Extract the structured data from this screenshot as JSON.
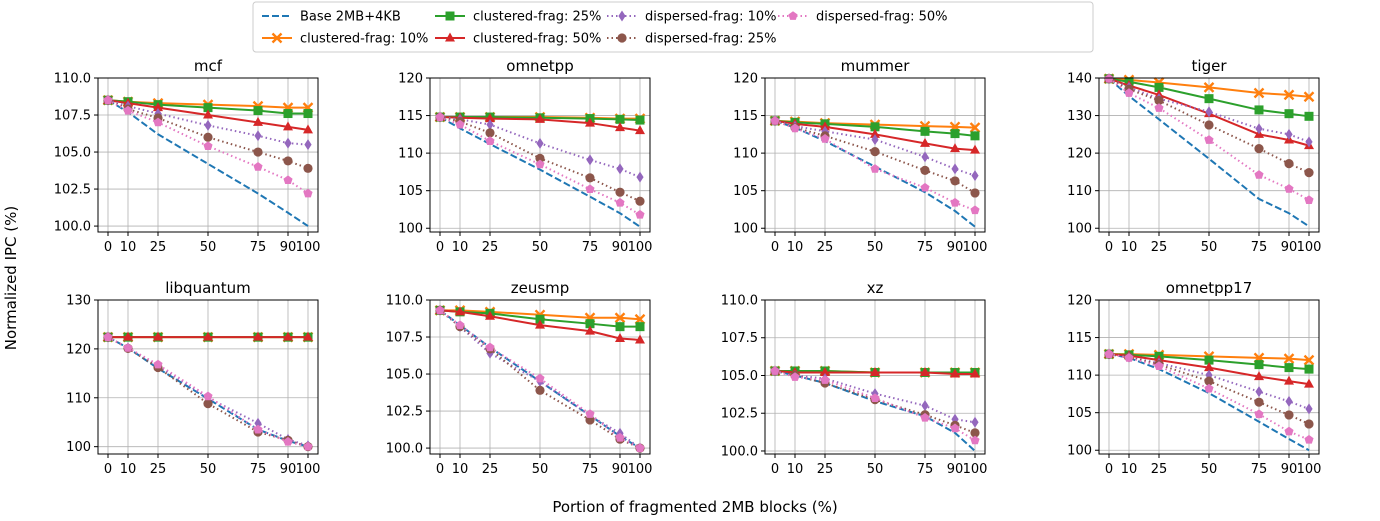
{
  "figure": {
    "xlabel": "Portion of fragmented 2MB blocks (%)",
    "ylabel": "Normalized IPC (%)"
  },
  "legend": {
    "placement": "top-center",
    "entries": [
      {
        "name": "Base 2MB+4KB",
        "color": "#1f77b4",
        "dash": "dashed",
        "marker": "none"
      },
      {
        "name": "clustered-frag: 10%",
        "color": "#ff7f0e",
        "dash": "solid",
        "marker": "x"
      },
      {
        "name": "clustered-frag: 25%",
        "color": "#2ca02c",
        "dash": "solid",
        "marker": "square"
      },
      {
        "name": "clustered-frag: 50%",
        "color": "#d62728",
        "dash": "solid",
        "marker": "triangle"
      },
      {
        "name": "dispersed-frag: 10%",
        "color": "#9467bd",
        "dash": "dotted",
        "marker": "diamond"
      },
      {
        "name": "dispersed-frag: 25%",
        "color": "#8c564b",
        "dash": "dotted",
        "marker": "circle"
      },
      {
        "name": "dispersed-frag: 50%",
        "color": "#e377c2",
        "dash": "dotted",
        "marker": "pentagon"
      }
    ]
  },
  "chart_data": [
    {
      "type": "line",
      "title": "mcf",
      "x": [
        0,
        10,
        25,
        50,
        75,
        90,
        100
      ],
      "xticks": [
        "0",
        "10",
        "25",
        "50",
        "75",
        "90",
        "100"
      ],
      "ylim": [
        99.6,
        110
      ],
      "yticks": [
        100.0,
        102.5,
        105.0,
        107.5,
        110.0
      ],
      "ytick_labels": [
        "100.0",
        "102.5",
        "105.0",
        "107.5",
        "110.0"
      ],
      "series": [
        {
          "name": "Base 2MB+4KB",
          "values": [
            108.5,
            107.7,
            106.2,
            104.2,
            102.2,
            100.9,
            100.0
          ]
        },
        {
          "name": "clustered-frag: 10%",
          "values": [
            108.5,
            108.4,
            108.3,
            108.2,
            108.1,
            108.0,
            108.0
          ]
        },
        {
          "name": "clustered-frag: 25%",
          "values": [
            108.5,
            108.4,
            108.2,
            108.0,
            107.8,
            107.6,
            107.6
          ]
        },
        {
          "name": "clustered-frag: 50%",
          "values": [
            108.5,
            108.3,
            108.0,
            107.5,
            107.0,
            106.7,
            106.5
          ]
        },
        {
          "name": "dispersed-frag: 10%",
          "values": [
            108.5,
            108.1,
            107.6,
            106.8,
            106.1,
            105.6,
            105.5
          ]
        },
        {
          "name": "dispersed-frag: 25%",
          "values": [
            108.5,
            107.9,
            107.3,
            106.0,
            105.0,
            104.4,
            103.9
          ]
        },
        {
          "name": "dispersed-frag: 50%",
          "values": [
            108.5,
            107.8,
            107.0,
            105.4,
            104.0,
            103.1,
            102.2
          ]
        }
      ]
    },
    {
      "type": "line",
      "title": "omnetpp",
      "x": [
        0,
        10,
        25,
        50,
        75,
        90,
        100
      ],
      "xticks": [
        "0",
        "10",
        "25",
        "50",
        "75",
        "90",
        "100"
      ],
      "ylim": [
        99.5,
        120
      ],
      "yticks": [
        100,
        105,
        110,
        115,
        120
      ],
      "ytick_labels": [
        "100",
        "105",
        "110",
        "115",
        "120"
      ],
      "series": [
        {
          "name": "Base 2MB+4KB",
          "values": [
            114.8,
            113.3,
            111.2,
            107.8,
            104.2,
            102.0,
            100.2
          ]
        },
        {
          "name": "clustered-frag: 10%",
          "values": [
            114.8,
            114.8,
            114.8,
            114.8,
            114.7,
            114.6,
            114.6
          ]
        },
        {
          "name": "clustered-frag: 25%",
          "values": [
            114.8,
            114.8,
            114.8,
            114.7,
            114.6,
            114.5,
            114.4
          ]
        },
        {
          "name": "clustered-frag: 50%",
          "values": [
            114.8,
            114.7,
            114.6,
            114.5,
            114.0,
            113.4,
            113.0
          ]
        },
        {
          "name": "dispersed-frag: 10%",
          "values": [
            114.8,
            114.5,
            113.8,
            111.3,
            109.1,
            107.9,
            106.8
          ]
        },
        {
          "name": "dispersed-frag: 25%",
          "values": [
            114.8,
            114.2,
            112.7,
            109.3,
            106.7,
            104.8,
            103.6
          ]
        },
        {
          "name": "dispersed-frag: 50%",
          "values": [
            114.8,
            113.8,
            111.6,
            108.5,
            105.2,
            103.4,
            101.8
          ]
        }
      ]
    },
    {
      "type": "line",
      "title": "mummer",
      "x": [
        0,
        10,
        25,
        50,
        75,
        90,
        100
      ],
      "xticks": [
        "0",
        "10",
        "25",
        "50",
        "75",
        "90",
        "100"
      ],
      "ylim": [
        99.5,
        120
      ],
      "yticks": [
        100,
        105,
        110,
        115,
        120
      ],
      "ytick_labels": [
        "100",
        "105",
        "110",
        "115",
        "120"
      ],
      "series": [
        {
          "name": "Base 2MB+4KB",
          "values": [
            114.3,
            113.4,
            111.6,
            108.2,
            104.8,
            102.3,
            100.2
          ]
        },
        {
          "name": "clustered-frag: 10%",
          "values": [
            114.3,
            114.2,
            114.0,
            113.8,
            113.6,
            113.5,
            113.4
          ]
        },
        {
          "name": "clustered-frag: 25%",
          "values": [
            114.3,
            114.1,
            113.9,
            113.5,
            112.9,
            112.6,
            112.3
          ]
        },
        {
          "name": "clustered-frag: 50%",
          "values": [
            114.3,
            113.9,
            113.5,
            112.5,
            111.3,
            110.6,
            110.4
          ]
        },
        {
          "name": "dispersed-frag: 10%",
          "values": [
            114.3,
            113.6,
            112.9,
            111.8,
            109.5,
            107.9,
            107.0
          ]
        },
        {
          "name": "dispersed-frag: 25%",
          "values": [
            114.3,
            113.4,
            112.3,
            110.2,
            107.7,
            106.3,
            104.7
          ]
        },
        {
          "name": "dispersed-frag: 50%",
          "values": [
            114.3,
            113.3,
            111.9,
            107.9,
            105.4,
            103.4,
            102.4
          ]
        }
      ]
    },
    {
      "type": "line",
      "title": "tiger",
      "x": [
        0,
        10,
        25,
        50,
        75,
        90,
        100
      ],
      "xticks": [
        "0",
        "10",
        "25",
        "50",
        "75",
        "90",
        "100"
      ],
      "ylim": [
        99,
        140
      ],
      "yticks": [
        100,
        110,
        120,
        130,
        140
      ],
      "ytick_labels": [
        "100",
        "110",
        "120",
        "130",
        "140"
      ],
      "series": [
        {
          "name": "Base 2MB+4KB",
          "values": [
            139.8,
            135.2,
            129.0,
            118.5,
            107.8,
            104.0,
            100.5
          ]
        },
        {
          "name": "clustered-frag: 10%",
          "values": [
            139.8,
            139.5,
            138.8,
            137.5,
            136.0,
            135.5,
            135.0
          ]
        },
        {
          "name": "clustered-frag: 25%",
          "values": [
            139.8,
            139.0,
            137.5,
            134.5,
            131.5,
            130.5,
            129.8
          ]
        },
        {
          "name": "clustered-frag: 50%",
          "values": [
            139.8,
            138.0,
            135.5,
            130.5,
            125.0,
            123.5,
            122.0
          ]
        },
        {
          "name": "dispersed-frag: 10%",
          "values": [
            139.8,
            137.5,
            134.5,
            131.0,
            126.5,
            125.0,
            123.0
          ]
        },
        {
          "name": "dispersed-frag: 25%",
          "values": [
            139.8,
            137.0,
            134.0,
            127.5,
            121.2,
            117.2,
            114.8
          ]
        },
        {
          "name": "dispersed-frag: 50%",
          "values": [
            139.8,
            136.0,
            132.0,
            123.5,
            114.2,
            110.5,
            107.5
          ]
        }
      ]
    },
    {
      "type": "line",
      "title": "libquantum",
      "x": [
        0,
        10,
        25,
        50,
        75,
        90,
        100
      ],
      "xticks": [
        "0",
        "10",
        "25",
        "50",
        "75",
        "90",
        "100"
      ],
      "ylim": [
        98.5,
        130
      ],
      "yticks": [
        100,
        110,
        120,
        130
      ],
      "ytick_labels": [
        "100",
        "110",
        "120",
        "130"
      ],
      "series": [
        {
          "name": "Base 2MB+4KB",
          "values": [
            122.4,
            120.2,
            116.0,
            109.8,
            103.5,
            101.2,
            100.0
          ]
        },
        {
          "name": "clustered-frag: 10%",
          "values": [
            122.4,
            122.4,
            122.4,
            122.4,
            122.4,
            122.4,
            122.4
          ]
        },
        {
          "name": "clustered-frag: 25%",
          "values": [
            122.4,
            122.4,
            122.4,
            122.4,
            122.4,
            122.4,
            122.4
          ]
        },
        {
          "name": "clustered-frag: 50%",
          "values": [
            122.4,
            122.4,
            122.4,
            122.4,
            122.4,
            122.4,
            122.4
          ]
        },
        {
          "name": "dispersed-frag: 10%",
          "values": [
            122.4,
            120.2,
            116.5,
            110.0,
            104.8,
            101.5,
            100.2
          ]
        },
        {
          "name": "dispersed-frag: 25%",
          "values": [
            122.4,
            120.1,
            116.2,
            108.8,
            103.0,
            101.3,
            100.0
          ]
        },
        {
          "name": "dispersed-frag: 50%",
          "values": [
            122.4,
            120.2,
            116.8,
            110.3,
            103.5,
            101.0,
            100.0
          ]
        }
      ]
    },
    {
      "type": "line",
      "title": "zeusmp",
      "x": [
        0,
        10,
        25,
        50,
        75,
        90,
        100
      ],
      "xticks": [
        "0",
        "10",
        "25",
        "50",
        "75",
        "90",
        "100"
      ],
      "ylim": [
        99.6,
        110
      ],
      "yticks": [
        100.0,
        102.5,
        105.0,
        107.5,
        110.0
      ],
      "ytick_labels": [
        "100.0",
        "102.5",
        "105.0",
        "107.5",
        "110.0"
      ],
      "series": [
        {
          "name": "Base 2MB+4KB",
          "values": [
            109.3,
            108.3,
            106.8,
            104.5,
            102.2,
            100.8,
            100.0
          ]
        },
        {
          "name": "clustered-frag: 10%",
          "values": [
            109.3,
            109.3,
            109.2,
            109.0,
            108.8,
            108.8,
            108.7
          ]
        },
        {
          "name": "clustered-frag: 25%",
          "values": [
            109.3,
            109.2,
            109.1,
            108.7,
            108.4,
            108.2,
            108.2
          ]
        },
        {
          "name": "clustered-frag: 50%",
          "values": [
            109.3,
            109.2,
            108.9,
            108.3,
            107.9,
            107.4,
            107.3
          ]
        },
        {
          "name": "dispersed-frag: 10%",
          "values": [
            109.3,
            108.2,
            106.4,
            104.5,
            102.2,
            101.0,
            100.0
          ]
        },
        {
          "name": "dispersed-frag: 25%",
          "values": [
            109.3,
            108.2,
            106.7,
            103.9,
            101.9,
            100.6,
            100.0
          ]
        },
        {
          "name": "dispersed-frag: 50%",
          "values": [
            109.3,
            108.3,
            106.8,
            104.7,
            102.3,
            100.7,
            100.0
          ]
        }
      ]
    },
    {
      "type": "line",
      "title": "xz",
      "x": [
        0,
        10,
        25,
        50,
        75,
        90,
        100
      ],
      "xticks": [
        "0",
        "10",
        "25",
        "50",
        "75",
        "90",
        "100"
      ],
      "ylim": [
        99.8,
        110
      ],
      "yticks": [
        100.0,
        102.5,
        105.0,
        107.5,
        110.0
      ],
      "ytick_labels": [
        "100.0",
        "102.5",
        "105.0",
        "107.5",
        "110.0"
      ],
      "series": [
        {
          "name": "Base 2MB+4KB",
          "values": [
            105.3,
            105.0,
            104.5,
            103.3,
            102.3,
            101.2,
            100.0
          ]
        },
        {
          "name": "clustered-frag: 10%",
          "values": [
            105.3,
            105.3,
            105.3,
            105.2,
            105.2,
            105.2,
            105.2
          ]
        },
        {
          "name": "clustered-frag: 25%",
          "values": [
            105.3,
            105.3,
            105.3,
            105.2,
            105.2,
            105.2,
            105.2
          ]
        },
        {
          "name": "clustered-frag: 50%",
          "values": [
            105.3,
            105.2,
            105.2,
            105.2,
            105.2,
            105.1,
            105.1
          ]
        },
        {
          "name": "dispersed-frag: 10%",
          "values": [
            105.3,
            105.0,
            104.8,
            103.8,
            103.0,
            102.1,
            101.9
          ]
        },
        {
          "name": "dispersed-frag: 25%",
          "values": [
            105.3,
            105.0,
            104.5,
            103.4,
            102.4,
            101.7,
            101.2
          ]
        },
        {
          "name": "dispersed-frag: 50%",
          "values": [
            105.3,
            104.9,
            104.7,
            103.5,
            102.2,
            101.5,
            100.7
          ]
        }
      ]
    },
    {
      "type": "line",
      "title": "omnetpp17",
      "x": [
        0,
        10,
        25,
        50,
        75,
        90,
        100
      ],
      "xticks": [
        "0",
        "10",
        "25",
        "50",
        "75",
        "90",
        "100"
      ],
      "ylim": [
        99.5,
        120
      ],
      "yticks": [
        100,
        105,
        110,
        115,
        120
      ],
      "ytick_labels": [
        "100",
        "105",
        "110",
        "115",
        "120"
      ],
      "series": [
        {
          "name": "Base 2MB+4KB",
          "values": [
            112.8,
            112.3,
            110.8,
            107.6,
            103.8,
            101.5,
            100.0
          ]
        },
        {
          "name": "clustered-frag: 10%",
          "values": [
            112.8,
            112.8,
            112.7,
            112.5,
            112.3,
            112.2,
            112.0
          ]
        },
        {
          "name": "clustered-frag: 25%",
          "values": [
            112.8,
            112.7,
            112.5,
            112.0,
            111.4,
            111.0,
            110.8
          ]
        },
        {
          "name": "clustered-frag: 50%",
          "values": [
            112.8,
            112.6,
            112.0,
            111.0,
            109.8,
            109.2,
            108.8
          ]
        },
        {
          "name": "dispersed-frag: 10%",
          "values": [
            112.8,
            112.4,
            111.6,
            110.0,
            107.8,
            106.5,
            105.5
          ]
        },
        {
          "name": "dispersed-frag: 25%",
          "values": [
            112.8,
            112.4,
            111.4,
            109.2,
            106.4,
            104.7,
            103.5
          ]
        },
        {
          "name": "dispersed-frag: 50%",
          "values": [
            112.8,
            112.3,
            111.2,
            108.2,
            104.8,
            102.5,
            101.4
          ]
        }
      ]
    }
  ]
}
